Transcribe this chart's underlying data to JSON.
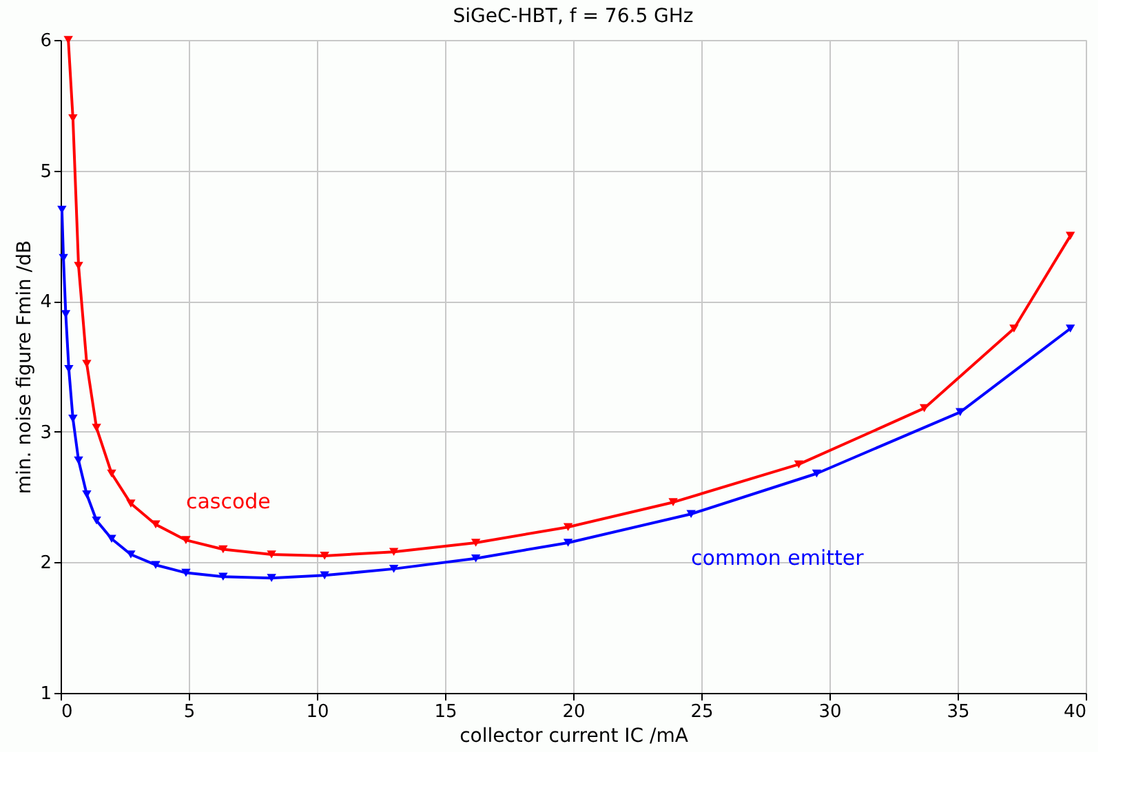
{
  "chart_data": {
    "type": "line",
    "title": "SiGeC-HBT, f = 76.5 GHz",
    "xlabel": "collector current IC /mA",
    "ylabel": "min. noise figure Fmin /dB",
    "xlim": [
      0,
      40
    ],
    "ylim": [
      1,
      6
    ],
    "xticks": [
      0,
      5,
      10,
      15,
      20,
      25,
      30,
      35,
      40
    ],
    "yticks": [
      1,
      2,
      3,
      4,
      5,
      6
    ],
    "grid": true,
    "legend": false,
    "marker": "triangle-down",
    "line_style": "solid",
    "series": [
      {
        "name": "cascode",
        "color": "#ff0000",
        "x": [
          0.3,
          0.48,
          0.7,
          1.02,
          1.4,
          1.99,
          2.74,
          3.71,
          4.89,
          6.34,
          8.23,
          10.3,
          13.0,
          16.2,
          19.8,
          23.9,
          28.8,
          33.7,
          37.2,
          39.4
        ],
        "values": [
          6.0,
          5.4,
          4.27,
          3.52,
          3.03,
          2.68,
          2.45,
          2.29,
          2.17,
          2.1,
          2.06,
          2.05,
          2.08,
          2.15,
          2.27,
          2.46,
          2.75,
          3.18,
          3.79,
          4.5
        ]
      },
      {
        "name": "common emitter",
        "color": "#0000ff",
        "x": [
          0.05,
          0.11,
          0.2,
          0.32,
          0.48,
          0.7,
          1.02,
          1.4,
          1.99,
          2.74,
          3.71,
          4.89,
          6.34,
          8.23,
          10.3,
          13.0,
          16.2,
          19.8,
          24.6,
          29.5,
          35.1,
          39.4
        ],
        "values": [
          4.7,
          4.33,
          3.9,
          3.48,
          3.1,
          2.78,
          2.52,
          2.32,
          2.18,
          2.06,
          1.98,
          1.92,
          1.89,
          1.88,
          1.9,
          1.95,
          2.03,
          2.15,
          2.37,
          2.68,
          3.15,
          3.79
        ]
      }
    ]
  }
}
